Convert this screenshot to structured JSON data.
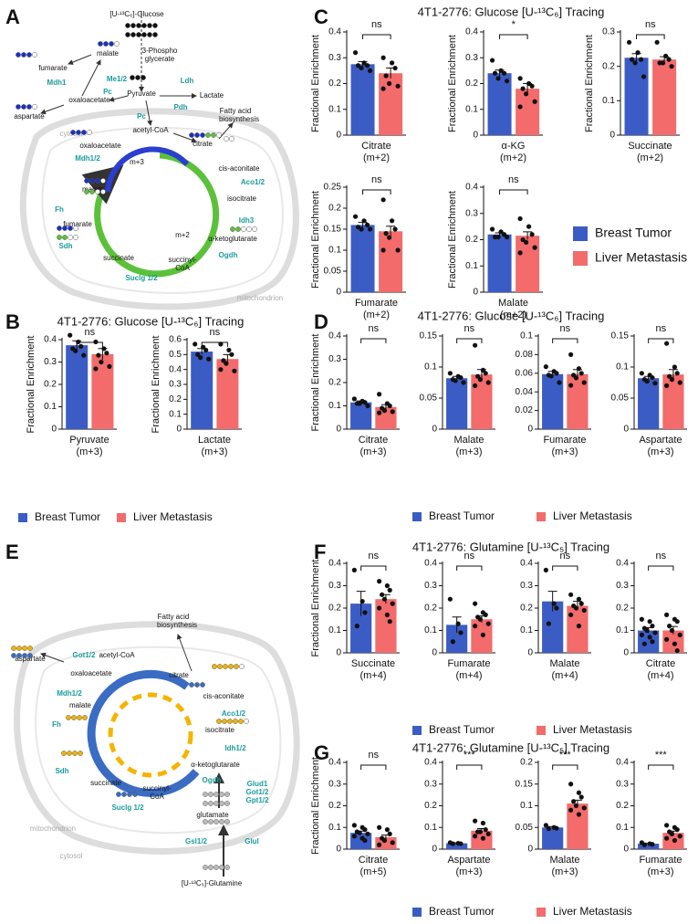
{
  "panels": [
    {
      "letter": "A"
    },
    {
      "letter": "B",
      "title": "4T1-2776: Glucose [U-¹³C₆] Tracing",
      "legend": [
        {
          "name": "Breast Tumor",
          "color": "#3b5cc4"
        },
        {
          "name": "Liver Metastasis",
          "color": "#f46b6b"
        }
      ]
    },
    {
      "letter": "C",
      "title": "4T1-2776: Glucose [U-¹³C₆] Tracing",
      "legend": [
        {
          "name": "Breast Tumor",
          "color": "#3b5cc4"
        },
        {
          "name": "Liver Metastasis",
          "color": "#f46b6b"
        }
      ]
    },
    {
      "letter": "D",
      "title": "4T1-2776: Glucose [U-¹³C₆] Tracing",
      "legend": [
        {
          "name": "Breast Tumor",
          "color": "#3b5cc4"
        },
        {
          "name": "Liver Metastasis",
          "color": "#f46b6b"
        }
      ]
    },
    {
      "letter": "E"
    },
    {
      "letter": "F",
      "title": "4T1-2776: Glutamine [U-¹³C₅] Tracing",
      "legend": [
        {
          "name": "Breast Tumor",
          "color": "#3b5cc4"
        },
        {
          "name": "Liver Metastasis",
          "color": "#f46b6b"
        }
      ]
    },
    {
      "letter": "G",
      "title": "4T1-2776: Glutamine [U-¹³C₅] Tracing",
      "legend": [
        {
          "name": "Breast Tumor",
          "color": "#3b5cc4"
        },
        {
          "name": "Liver Metastasis",
          "color": "#f46b6b"
        }
      ]
    }
  ],
  "chart_data": [
    {
      "type": "bar",
      "ylabel": "Fractional Enrichment",
      "xlabel": [
        "Pyruvate",
        "(m+3)"
      ],
      "colors": [
        "#3b5cc4",
        "#f46b6b"
      ],
      "values": [
        0.375,
        0.335
      ],
      "errors": [
        0.02,
        0.025
      ],
      "points": [
        [
          0.42,
          0.39,
          0.37,
          0.36,
          0.35,
          0.33
        ],
        [
          0.39,
          0.36,
          0.34,
          0.33,
          0.3,
          0.28,
          0.27
        ]
      ],
      "significance": "ns",
      "ylim": [
        0,
        0.4
      ],
      "yticks": [
        0,
        0.1,
        0.2,
        0.3,
        0.4
      ]
    },
    {
      "type": "bar",
      "ylabel": "Fractional Enrichment",
      "xlabel": [
        "Lactate",
        "(m+3)"
      ],
      "colors": [
        "#3b5cc4",
        "#f46b6b"
      ],
      "values": [
        0.52,
        0.47
      ],
      "errors": [
        0.02,
        0.03
      ],
      "points": [
        [
          0.57,
          0.55,
          0.53,
          0.5,
          0.48,
          0.47
        ],
        [
          0.57,
          0.53,
          0.5,
          0.46,
          0.44,
          0.39,
          0.4
        ]
      ],
      "significance": "ns",
      "ylim": [
        0,
        0.6
      ],
      "yticks": [
        0,
        0.1,
        0.2,
        0.3,
        0.4,
        0.5,
        0.6
      ]
    },
    {
      "type": "bar",
      "ylabel": "Fractional Enrichment",
      "xlabel": [
        "Citrate",
        "(m+2)"
      ],
      "colors": [
        "#3b5cc4",
        "#f46b6b"
      ],
      "values": [
        0.275,
        0.24
      ],
      "errors": [
        0.01,
        0.02
      ],
      "points": [
        [
          0.32,
          0.28,
          0.27,
          0.27,
          0.26,
          0.25
        ],
        [
          0.3,
          0.28,
          0.26,
          0.23,
          0.2,
          0.19,
          0.18
        ]
      ],
      "significance": "ns",
      "ylim": [
        0,
        0.4
      ],
      "yticks": [
        0,
        0.1,
        0.2,
        0.3,
        0.4
      ]
    },
    {
      "type": "bar",
      "ylabel": "Fractional Enrichment",
      "xlabel": [
        "α-KG",
        "(m+2)"
      ],
      "colors": [
        "#3b5cc4",
        "#f46b6b"
      ],
      "values": [
        0.24,
        0.18
      ],
      "errors": [
        0.012,
        0.02
      ],
      "points": [
        [
          0.29,
          0.25,
          0.24,
          0.24,
          0.22,
          0.21
        ],
        [
          0.22,
          0.2,
          0.19,
          0.18,
          0.16,
          0.13,
          0.11
        ]
      ],
      "significance": "*",
      "ylim": [
        0,
        0.4
      ],
      "yticks": [
        0,
        0.1,
        0.2,
        0.3,
        0.4
      ]
    },
    {
      "type": "bar",
      "ylabel": "Fractional Enrichment",
      "xlabel": [
        "Succinate",
        "(m+2)"
      ],
      "colors": [
        "#3b5cc4",
        "#f46b6b"
      ],
      "values": [
        0.225,
        0.22
      ],
      "errors": [
        0.012,
        0.008
      ],
      "points": [
        [
          0.27,
          0.24,
          0.22,
          0.22,
          0.21,
          0.17
        ],
        [
          0.27,
          0.23,
          0.22,
          0.21,
          0.21,
          0.2
        ]
      ],
      "significance": "ns",
      "ylim": [
        0,
        0.3
      ],
      "yticks": [
        0,
        0.1,
        0.2,
        0.3
      ]
    },
    {
      "type": "bar",
      "ylabel": "Fractional Enrichment",
      "xlabel": [
        "Fumarate",
        "(m+2)"
      ],
      "colors": [
        "#3b5cc4",
        "#f46b6b"
      ],
      "values": [
        0.16,
        0.145
      ],
      "errors": [
        0.006,
        0.012
      ],
      "points": [
        [
          0.18,
          0.17,
          0.16,
          0.155,
          0.15,
          0.15
        ],
        [
          0.22,
          0.17,
          0.15,
          0.14,
          0.13,
          0.1,
          0.1
        ]
      ],
      "significance": "ns",
      "ylim": [
        0,
        0.25
      ],
      "yticks": [
        0,
        0.05,
        0.1,
        0.15,
        0.2,
        0.25
      ]
    },
    {
      "type": "bar",
      "ylabel": "Fractional Enrichment",
      "xlabel": [
        "Malate",
        "(m+2)"
      ],
      "colors": [
        "#3b5cc4",
        "#f46b6b"
      ],
      "values": [
        0.22,
        0.215
      ],
      "errors": [
        0.006,
        0.015
      ],
      "points": [
        [
          0.24,
          0.23,
          0.22,
          0.21,
          0.21,
          0.21
        ],
        [
          0.28,
          0.25,
          0.22,
          0.2,
          0.19,
          0.17,
          0.15
        ]
      ],
      "significance": "ns",
      "ylim": [
        0,
        0.4
      ],
      "yticks": [
        0,
        0.1,
        0.2,
        0.3,
        0.4
      ]
    },
    {
      "type": "bar",
      "ylabel": "Fractional Enrichment",
      "xlabel": [
        "Citrate",
        "(m+3)"
      ],
      "colors": [
        "#3b5cc4",
        "#f46b6b"
      ],
      "values": [
        0.115,
        0.095
      ],
      "errors": [
        0.006,
        0.01
      ],
      "points": [
        [
          0.13,
          0.12,
          0.115,
          0.11,
          0.11,
          0.1
        ],
        [
          0.15,
          0.11,
          0.1,
          0.09,
          0.08,
          0.075,
          0.07
        ]
      ],
      "significance": "ns",
      "ylim": [
        0,
        0.4
      ],
      "yticks": [
        0,
        0.1,
        0.2,
        0.3,
        0.4
      ]
    },
    {
      "type": "bar",
      "xlabel": [
        "Malate",
        "(m+3)"
      ],
      "colors": [
        "#3b5cc4",
        "#f46b6b"
      ],
      "values": [
        0.082,
        0.088
      ],
      "errors": [
        0.003,
        0.008
      ],
      "points": [
        [
          0.09,
          0.085,
          0.083,
          0.08,
          0.078,
          0.075
        ],
        [
          0.135,
          0.095,
          0.09,
          0.085,
          0.08,
          0.075,
          0.07
        ]
      ],
      "significance": "ns",
      "ylim": [
        0,
        0.15
      ],
      "yticks": [
        0,
        0.05,
        0.1,
        0.15
      ]
    },
    {
      "type": "bar",
      "xlabel": [
        "Fumarate",
        "(m+3)"
      ],
      "colors": [
        "#3b5cc4",
        "#f46b6b"
      ],
      "values": [
        0.059,
        0.059
      ],
      "errors": [
        0.003,
        0.005
      ],
      "points": [
        [
          0.067,
          0.062,
          0.06,
          0.058,
          0.057,
          0.05
        ],
        [
          0.08,
          0.065,
          0.06,
          0.058,
          0.055,
          0.05,
          0.047
        ]
      ],
      "significance": "ns",
      "ylim": [
        0,
        0.1
      ],
      "yticks": [
        0,
        0.02,
        0.04,
        0.06,
        0.08,
        0.1
      ]
    },
    {
      "type": "bar",
      "xlabel": [
        "Aspartate",
        "(m+3)"
      ],
      "colors": [
        "#3b5cc4",
        "#f46b6b"
      ],
      "values": [
        0.082,
        0.088
      ],
      "errors": [
        0.003,
        0.008
      ],
      "points": [
        [
          0.09,
          0.087,
          0.083,
          0.08,
          0.077,
          0.074
        ],
        [
          0.138,
          0.1,
          0.09,
          0.085,
          0.08,
          0.075,
          0.07
        ]
      ],
      "significance": "ns",
      "ylim": [
        0,
        0.15
      ],
      "yticks": [
        0,
        0.05,
        0.1,
        0.15
      ]
    },
    {
      "type": "bar",
      "ylabel": "Fractional Enrichment",
      "xlabel": [
        "Succinate",
        "(m+4)"
      ],
      "colors": [
        "#3b5cc4",
        "#f46b6b"
      ],
      "values": [
        0.22,
        0.24
      ],
      "errors": [
        0.055,
        0.02
      ],
      "points": [
        [
          0.37,
          0.23,
          0.18,
          0.12
        ],
        [
          0.32,
          0.3,
          0.28,
          0.26,
          0.24,
          0.22,
          0.2,
          0.17,
          0.14
        ]
      ],
      "significance": "ns",
      "ylim": [
        0,
        0.4
      ],
      "yticks": [
        0,
        0.1,
        0.2,
        0.3,
        0.4
      ]
    },
    {
      "type": "bar",
      "xlabel": [
        "Fumarate",
        "(m+4)"
      ],
      "colors": [
        "#3b5cc4",
        "#f46b6b"
      ],
      "values": [
        0.125,
        0.15
      ],
      "errors": [
        0.035,
        0.015
      ],
      "points": [
        [
          0.24,
          0.13,
          0.09,
          0.05
        ],
        [
          0.22,
          0.18,
          0.17,
          0.16,
          0.15,
          0.13,
          0.12,
          0.08
        ]
      ],
      "significance": "ns",
      "ylim": [
        0,
        0.4
      ],
      "yticks": [
        0,
        0.1,
        0.2,
        0.3,
        0.4
      ]
    },
    {
      "type": "bar",
      "xlabel": [
        "Malate",
        "(m+4)"
      ],
      "colors": [
        "#3b5cc4",
        "#f46b6b"
      ],
      "values": [
        0.23,
        0.21
      ],
      "errors": [
        0.045,
        0.02
      ],
      "points": [
        [
          0.37,
          0.22,
          0.2,
          0.13
        ],
        [
          0.26,
          0.24,
          0.22,
          0.21,
          0.2,
          0.19,
          0.17,
          0.12
        ]
      ],
      "significance": "ns",
      "ylim": [
        0,
        0.4
      ],
      "yticks": [
        0,
        0.1,
        0.2,
        0.3,
        0.4
      ]
    },
    {
      "type": "bar",
      "xlabel": [
        "Citrate",
        "(m+4)"
      ],
      "colors": [
        "#3b5cc4",
        "#f46b6b"
      ],
      "values": [
        0.1,
        0.1
      ],
      "errors": [
        0.012,
        0.018
      ],
      "points": [
        [
          0.15,
          0.14,
          0.12,
          0.11,
          0.1,
          0.09,
          0.08,
          0.07,
          0.05,
          0.04
        ],
        [
          0.17,
          0.15,
          0.14,
          0.12,
          0.1,
          0.08,
          0.06,
          0.04,
          0.01
        ]
      ],
      "significance": "ns",
      "ylim": [
        0,
        0.4
      ],
      "yticks": [
        0,
        0.1,
        0.2,
        0.3,
        0.4
      ]
    },
    {
      "type": "bar",
      "ylabel": "Fractional Enrichment",
      "xlabel": [
        "Citrate",
        "(m+5)"
      ],
      "colors": [
        "#3b5cc4",
        "#f46b6b"
      ],
      "values": [
        0.075,
        0.055
      ],
      "errors": [
        0.008,
        0.01
      ],
      "points": [
        [
          0.11,
          0.1,
          0.09,
          0.08,
          0.075,
          0.07,
          0.06,
          0.05,
          0.04
        ],
        [
          0.1,
          0.09,
          0.07,
          0.05,
          0.04,
          0.03,
          0.02
        ]
      ],
      "significance": "ns",
      "ylim": [
        0,
        0.4
      ],
      "yticks": [
        0,
        0.1,
        0.2,
        0.3,
        0.4
      ]
    },
    {
      "type": "bar",
      "xlabel": [
        "Aspartate",
        "(m+3)"
      ],
      "colors": [
        "#3b5cc4",
        "#f46b6b"
      ],
      "values": [
        0.027,
        0.085
      ],
      "errors": [
        0.002,
        0.01
      ],
      "points": [
        [
          0.03,
          0.027,
          0.025,
          0.025
        ],
        [
          0.13,
          0.12,
          0.09,
          0.08,
          0.08,
          0.07,
          0.06,
          0.05
        ]
      ],
      "significance": "***",
      "ylim": [
        0,
        0.4
      ],
      "yticks": [
        0,
        0.1,
        0.2,
        0.3,
        0.4
      ]
    },
    {
      "type": "bar",
      "xlabel": [
        "Malate",
        "(m+3)"
      ],
      "colors": [
        "#3b5cc4",
        "#f46b6b"
      ],
      "values": [
        0.05,
        0.105
      ],
      "errors": [
        0.002,
        0.008
      ],
      "points": [
        [
          0.055,
          0.05,
          0.048,
          0.047
        ],
        [
          0.15,
          0.13,
          0.12,
          0.11,
          0.1,
          0.095,
          0.09,
          0.08
        ]
      ],
      "significance": "***",
      "ylim": [
        0,
        0.2
      ],
      "yticks": [
        0,
        0.05,
        0.1,
        0.15,
        0.2
      ]
    },
    {
      "type": "bar",
      "xlabel": [
        "Fumarate",
        "(m+3)"
      ],
      "colors": [
        "#3b5cc4",
        "#f46b6b"
      ],
      "values": [
        0.025,
        0.075
      ],
      "errors": [
        0.002,
        0.008
      ],
      "points": [
        [
          0.03,
          0.025,
          0.022,
          0.02
        ],
        [
          0.11,
          0.1,
          0.09,
          0.08,
          0.07,
          0.06,
          0.05,
          0.04
        ]
      ],
      "significance": "***",
      "ylim": [
        0,
        0.4
      ],
      "yticks": [
        0,
        0.1,
        0.2,
        0.3,
        0.4
      ]
    }
  ],
  "diagram_a": {
    "labels": [
      "[U-¹³C₆]-Glucose",
      "3-Phospho",
      "glycerate",
      "Pyruvate",
      "Lactate",
      "Ldh",
      "malate",
      "fumarate",
      "Mdh1",
      "aspartate",
      "oxaloacetate",
      "Me1/2",
      "Pc",
      "cytosol",
      "Pc",
      "Pdh",
      "acetyl-CoA",
      "Fatty acid",
      "biosynthesis",
      "citrate",
      "oxaloacetate",
      "Mdh1/2",
      "malate",
      "m+3",
      "cis-aconitate",
      "Aco1/2",
      "isocitrate",
      "Idh3",
      "α-ketoglutarate",
      "Fh",
      "fumarate",
      "Sdh",
      "m+2",
      "Ogdh",
      "succinate",
      "succinyl-",
      "CoA",
      "Suclg 1/2",
      "mitochondrion"
    ]
  },
  "diagram_e": {
    "labels": [
      "Fatty acid",
      "biosynthesis",
      "aspartate",
      "Got1/2",
      "acetyl-CoA",
      "citrate",
      "oxaloacetate",
      "Mdh1/2",
      "malate",
      "cis-aconitate",
      "Aco1/2",
      "isocitrate",
      "Idh1/2",
      "α-ketoglutarate",
      "Fh",
      "Sdh",
      "succinate",
      "succinyl-",
      "CoA",
      "Ogdh",
      "Suclg 1/2",
      "glutamate",
      "Glud1",
      "Got1/2",
      "Gpt1/2",
      "Gsl1/2",
      "Glul",
      "[U-¹³C₅]-Glutamine",
      "mitochondrion",
      "cytosol"
    ]
  }
}
